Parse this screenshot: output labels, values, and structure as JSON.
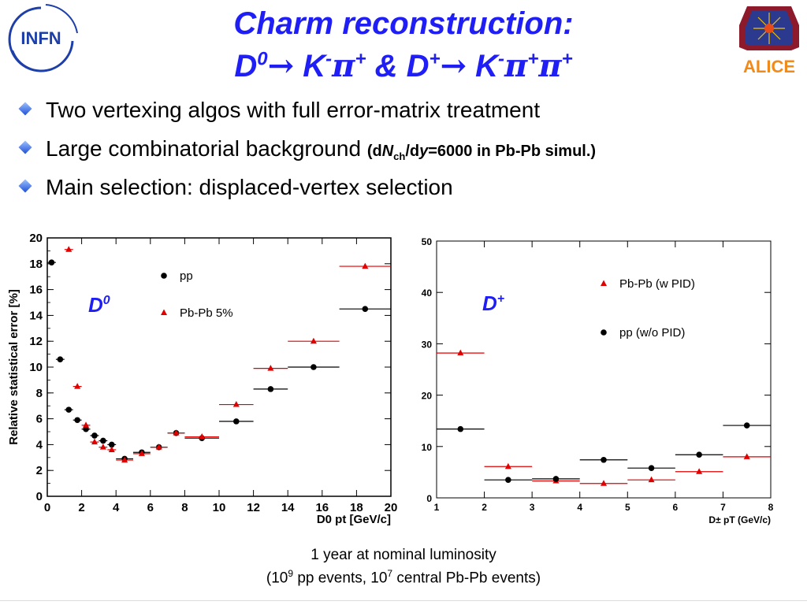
{
  "header": {
    "title_line1": "Charm reconstruction:",
    "title_line2_parts": {
      "d0": "D",
      "d0_sup": "0",
      "arrow": "→",
      "k": "K",
      "k_sup": "-",
      "pi": "π",
      "pi_sup": "+",
      "amp": "&",
      "dp": "D",
      "dp_sup": "+",
      "k2": "K",
      "k2_sup": "-",
      "pi2": "π",
      "pi2_sup": "+",
      "pi3": "π",
      "pi3_sup": "+"
    },
    "left_logo_text": "INFN",
    "right_logo_text": "ALICE"
  },
  "bullets": {
    "b1": "Two vertexing algos with full error-matrix treatment",
    "b2_main": "Large combinatorial background",
    "b2_sub": "(dNch/dy=6000 in Pb-Pb simul.)",
    "b2_sub_pre": "(d",
    "b2_sub_N": "N",
    "b2_sub_ch": "ch",
    "b2_sub_mid": "/d",
    "b2_sub_y": "y",
    "b2_sub_post": "=6000 in Pb-Pb simul.)",
    "b3": "Main selection: displaced-vertex selection"
  },
  "caption": {
    "line1": "1 year at nominal luminosity",
    "line2_a": "(10",
    "line2_sup1": "9",
    "line2_b": " pp events, 10",
    "line2_sup2": "7",
    "line2_c": " central Pb-Pb events)"
  },
  "colors": {
    "title": "#1e1ef5",
    "pbpb": "#e00000",
    "pp": "#000000",
    "label_blue": "#1e1ef5"
  },
  "chart_data": [
    {
      "type": "scatter",
      "label": "D0",
      "xlabel": "D0 pt [GeV/c]",
      "ylabel": "Relative statistical error [%]",
      "xlim": [
        0,
        20
      ],
      "ylim": [
        0,
        20
      ],
      "xticks": [
        0,
        2,
        4,
        6,
        8,
        10,
        12,
        14,
        16,
        18,
        20
      ],
      "yticks": [
        0,
        2,
        4,
        6,
        8,
        10,
        12,
        14,
        16,
        18,
        20
      ],
      "legend": [
        "pp",
        "Pb-Pb 5%"
      ],
      "series": [
        {
          "name": "pp",
          "marker": "circle",
          "points": [
            {
              "x": 0.25,
              "y": 18.1,
              "xlo": 0,
              "xhi": 0.5
            },
            {
              "x": 0.75,
              "y": 10.6,
              "xlo": 0.5,
              "xhi": 1.0
            },
            {
              "x": 1.25,
              "y": 6.7,
              "xlo": 1.0,
              "xhi": 1.5
            },
            {
              "x": 1.75,
              "y": 5.9,
              "xlo": 1.5,
              "xhi": 2.0
            },
            {
              "x": 2.25,
              "y": 5.2,
              "xlo": 2.0,
              "xhi": 2.5
            },
            {
              "x": 2.75,
              "y": 4.7,
              "xlo": 2.5,
              "xhi": 3.0
            },
            {
              "x": 3.25,
              "y": 4.3,
              "xlo": 3.0,
              "xhi": 3.5
            },
            {
              "x": 3.75,
              "y": 4.0,
              "xlo": 3.5,
              "xhi": 4.0
            },
            {
              "x": 4.5,
              "y": 2.9,
              "xlo": 4.0,
              "xhi": 5.0
            },
            {
              "x": 5.5,
              "y": 3.4,
              "xlo": 5.0,
              "xhi": 6.0
            },
            {
              "x": 6.5,
              "y": 3.8,
              "xlo": 6.0,
              "xhi": 7.0
            },
            {
              "x": 7.5,
              "y": 4.9,
              "xlo": 7.0,
              "xhi": 8.0
            },
            {
              "x": 9.0,
              "y": 4.5,
              "xlo": 8.0,
              "xhi": 10.0
            },
            {
              "x": 11.0,
              "y": 5.8,
              "xlo": 10.0,
              "xhi": 12.0
            },
            {
              "x": 13.0,
              "y": 8.3,
              "xlo": 12.0,
              "xhi": 14.0
            },
            {
              "x": 15.5,
              "y": 10.0,
              "xlo": 14.0,
              "xhi": 17.0
            },
            {
              "x": 18.5,
              "y": 14.5,
              "xlo": 17.0,
              "xhi": 20.0
            }
          ]
        },
        {
          "name": "Pb-Pb 5%",
          "marker": "triangle",
          "points": [
            {
              "x": 1.25,
              "y": 19.1,
              "xlo": 1.0,
              "xhi": 1.5
            },
            {
              "x": 1.75,
              "y": 8.5,
              "xlo": 1.5,
              "xhi": 2.0
            },
            {
              "x": 2.25,
              "y": 5.5,
              "xlo": 2.0,
              "xhi": 2.5
            },
            {
              "x": 2.75,
              "y": 4.2,
              "xlo": 2.5,
              "xhi": 3.0
            },
            {
              "x": 3.25,
              "y": 3.8,
              "xlo": 3.0,
              "xhi": 3.5
            },
            {
              "x": 3.75,
              "y": 3.6,
              "xlo": 3.5,
              "xhi": 4.0
            },
            {
              "x": 4.5,
              "y": 2.8,
              "xlo": 4.0,
              "xhi": 5.0
            },
            {
              "x": 5.5,
              "y": 3.3,
              "xlo": 5.0,
              "xhi": 6.0
            },
            {
              "x": 6.5,
              "y": 3.8,
              "xlo": 6.0,
              "xhi": 7.0
            },
            {
              "x": 7.5,
              "y": 4.9,
              "xlo": 7.0,
              "xhi": 8.0
            },
            {
              "x": 9.0,
              "y": 4.6,
              "xlo": 8.0,
              "xhi": 10.0
            },
            {
              "x": 11.0,
              "y": 7.1,
              "xlo": 10.0,
              "xhi": 12.0
            },
            {
              "x": 13.0,
              "y": 9.9,
              "xlo": 12.0,
              "xhi": 14.0
            },
            {
              "x": 15.5,
              "y": 12.0,
              "xlo": 14.0,
              "xhi": 17.0
            },
            {
              "x": 18.5,
              "y": 17.8,
              "xlo": 17.0,
              "xhi": 20.0
            }
          ]
        }
      ]
    },
    {
      "type": "scatter",
      "label": "D+",
      "xlabel": "D± pT (GeV/c)",
      "ylabel": "",
      "xlim": [
        1,
        8
      ],
      "ylim": [
        0,
        50
      ],
      "xticks": [
        1,
        2,
        3,
        4,
        5,
        6,
        7,
        8
      ],
      "yticks": [
        0,
        10,
        20,
        30,
        40,
        50
      ],
      "legend": [
        "Pb-Pb (w PID)",
        "pp (w/o PID)"
      ],
      "series": [
        {
          "name": "Pb-Pb (w PID)",
          "marker": "triangle",
          "points": [
            {
              "x": 1.5,
              "y": 28.2,
              "xlo": 1.0,
              "xhi": 2.0
            },
            {
              "x": 2.5,
              "y": 6.1,
              "xlo": 2.0,
              "xhi": 3.0
            },
            {
              "x": 3.5,
              "y": 3.3,
              "xlo": 3.0,
              "xhi": 4.0
            },
            {
              "x": 4.5,
              "y": 2.8,
              "xlo": 4.0,
              "xhi": 5.0
            },
            {
              "x": 5.5,
              "y": 3.5,
              "xlo": 5.0,
              "xhi": 6.0
            },
            {
              "x": 6.5,
              "y": 5.1,
              "xlo": 6.0,
              "xhi": 7.0
            },
            {
              "x": 7.5,
              "y": 8.0,
              "xlo": 7.0,
              "xhi": 8.0
            }
          ]
        },
        {
          "name": "pp (w/o PID)",
          "marker": "circle",
          "points": [
            {
              "x": 1.5,
              "y": 13.4,
              "xlo": 1.0,
              "xhi": 2.0
            },
            {
              "x": 2.5,
              "y": 3.5,
              "xlo": 2.0,
              "xhi": 3.0
            },
            {
              "x": 3.5,
              "y": 3.7,
              "xlo": 3.0,
              "xhi": 4.0
            },
            {
              "x": 4.5,
              "y": 7.4,
              "xlo": 4.0,
              "xhi": 5.0
            },
            {
              "x": 5.5,
              "y": 5.8,
              "xlo": 5.0,
              "xhi": 6.0
            },
            {
              "x": 6.5,
              "y": 8.4,
              "xlo": 6.0,
              "xhi": 7.0
            },
            {
              "x": 7.5,
              "y": 14.1,
              "xlo": 7.0,
              "xhi": 8.0
            }
          ]
        }
      ]
    }
  ]
}
